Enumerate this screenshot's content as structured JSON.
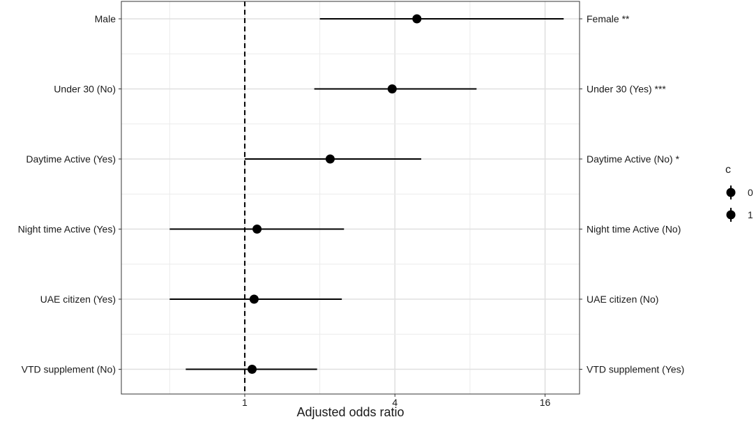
{
  "chart_data": {
    "type": "forest",
    "xlabel": "Adjusted odds ratio",
    "x_scale": "log2",
    "xlim": [
      0.32,
      22
    ],
    "x_ticks": [
      1,
      4,
      16
    ],
    "x_tick_labels": [
      "1",
      "4",
      "16"
    ],
    "reference_line": 1,
    "grid": true,
    "legend": {
      "title": "c",
      "placement": "right",
      "entries": [
        "0",
        "1"
      ]
    },
    "rows": [
      {
        "left_label": "Male",
        "right_label": "Female **",
        "or": 4.9,
        "ci_low": 2.0,
        "ci_high": 19.0
      },
      {
        "left_label": "Under 30 (No)",
        "right_label": "Under 30 (Yes) ***",
        "or": 3.9,
        "ci_low": 1.9,
        "ci_high": 8.5
      },
      {
        "left_label": "Daytime Active (Yes)",
        "right_label": "Daytime Active (No) *",
        "or": 2.2,
        "ci_low": 1.0,
        "ci_high": 5.1
      },
      {
        "left_label": "Night time Active (Yes)",
        "right_label": "Night time Active (No)",
        "or": 1.12,
        "ci_low": 0.5,
        "ci_high": 2.5
      },
      {
        "left_label": "UAE citizen (Yes)",
        "right_label": "UAE citizen (No)",
        "or": 1.09,
        "ci_low": 0.5,
        "ci_high": 2.45
      },
      {
        "left_label": "VTD supplement (No)",
        "right_label": "VTD supplement (Yes)",
        "or": 1.07,
        "ci_low": 0.58,
        "ci_high": 1.95
      }
    ]
  }
}
